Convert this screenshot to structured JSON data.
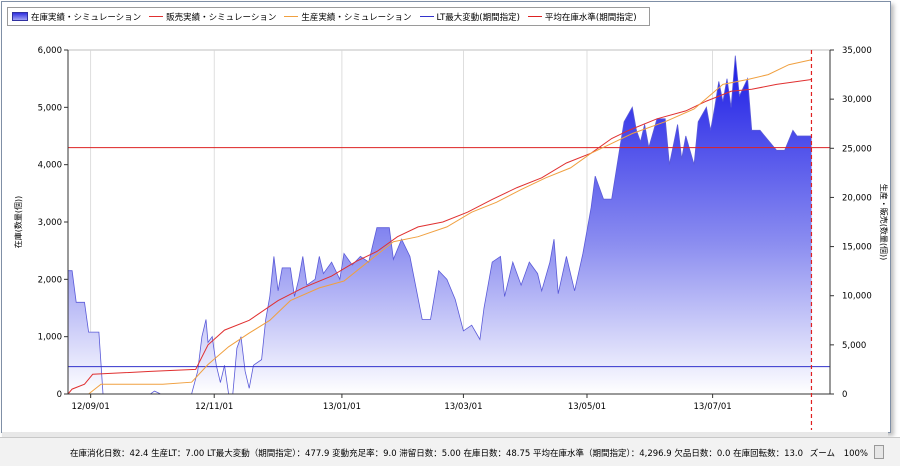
{
  "legend": {
    "items": [
      {
        "label": "在庫実績・シミュレーション",
        "kind": "area",
        "color": "#4a4de0"
      },
      {
        "label": "販売実績・シミュレーション",
        "kind": "line",
        "color": "#e03030"
      },
      {
        "label": "生産実績・シミュレーション",
        "kind": "line",
        "color": "#f0a040"
      },
      {
        "label": "LT最大変動(期間指定)",
        "kind": "line",
        "color": "#3333cc"
      },
      {
        "label": "平均在庫水準(期間指定)",
        "kind": "line",
        "color": "#dd2222"
      }
    ]
  },
  "status": {
    "text": "在庫消化日数：42.4 生産LT：7.00 LT最大変動（期間指定）：477.9 変動充足率：9.0 滞留日数：5.00 在庫日数：48.75 平均在庫水準（期間指定）：4,296.9 欠品日数：0.0 在庫回転数：13.0",
    "zoom_label": "ズーム",
    "zoom_value": "100%"
  },
  "chart_data": {
    "type": "area",
    "x_ticks": [
      "12/09/01",
      "12/11/01",
      "13/01/01",
      "13/03/01",
      "13/05/01",
      "13/07/01"
    ],
    "x_tick_pos": [
      1,
      61,
      123,
      182,
      242,
      303
    ],
    "x_range": [
      -10,
      360
    ],
    "ylabel_left": "在庫(数量(個))",
    "ylabel_right": "生産・販売(数量(個))",
    "ylim_left": [
      0,
      6000
    ],
    "ylim_right": [
      0,
      35000
    ],
    "left_ticks": [
      "0",
      "1,000",
      "2,000",
      "3,000",
      "4,000",
      "5,000",
      "6,000"
    ],
    "left_tick_vals": [
      0,
      1000,
      2000,
      3000,
      4000,
      5000,
      6000
    ],
    "right_ticks": [
      "0",
      "5,000",
      "10,000",
      "15,000",
      "20,000",
      "25,000",
      "30,000",
      "35,000"
    ],
    "right_tick_vals": [
      0,
      5000,
      10000,
      15000,
      20000,
      25000,
      30000,
      35000
    ],
    "grid": "vertical",
    "reference_lines": [
      {
        "name": "LT最大変動(期間指定)",
        "value": 477.9,
        "axis": "left",
        "color": "#3333cc"
      },
      {
        "name": "平均在庫水準(期間指定)",
        "value": 4296.9,
        "axis": "left",
        "color": "#dd2222"
      }
    ],
    "end_marker_day": 351,
    "series": [
      {
        "name": "在庫実績・シミュレーション",
        "kind": "area",
        "axis": "left",
        "color": "#3030e8",
        "points": [
          [
            -10,
            2150
          ],
          [
            -8,
            2150
          ],
          [
            -6,
            1600
          ],
          [
            -2,
            1600
          ],
          [
            0,
            1080
          ],
          [
            5,
            1080
          ],
          [
            7,
            0
          ],
          [
            30,
            0
          ],
          [
            32,
            50
          ],
          [
            35,
            0
          ],
          [
            50,
            0
          ],
          [
            53,
            400
          ],
          [
            55,
            1000
          ],
          [
            57,
            1300
          ],
          [
            58,
            900
          ],
          [
            60,
            1000
          ],
          [
            62,
            500
          ],
          [
            64,
            200
          ],
          [
            66,
            500
          ],
          [
            68,
            0
          ],
          [
            70,
            0
          ],
          [
            72,
            800
          ],
          [
            74,
            1000
          ],
          [
            76,
            400
          ],
          [
            78,
            100
          ],
          [
            80,
            500
          ],
          [
            84,
            600
          ],
          [
            86,
            1300
          ],
          [
            88,
            1700
          ],
          [
            90,
            2400
          ],
          [
            92,
            1800
          ],
          [
            94,
            2200
          ],
          [
            98,
            2200
          ],
          [
            100,
            1700
          ],
          [
            102,
            2000
          ],
          [
            104,
            2400
          ],
          [
            106,
            1900
          ],
          [
            110,
            2000
          ],
          [
            112,
            2400
          ],
          [
            114,
            2100
          ],
          [
            118,
            2300
          ],
          [
            122,
            2000
          ],
          [
            124,
            2450
          ],
          [
            128,
            2250
          ],
          [
            132,
            2400
          ],
          [
            136,
            2300
          ],
          [
            140,
            2900
          ],
          [
            146,
            2900
          ],
          [
            148,
            2350
          ],
          [
            152,
            2700
          ],
          [
            156,
            2400
          ],
          [
            162,
            1300
          ],
          [
            166,
            1300
          ],
          [
            170,
            2150
          ],
          [
            174,
            2000
          ],
          [
            178,
            1650
          ],
          [
            182,
            1100
          ],
          [
            186,
            1200
          ],
          [
            190,
            950
          ],
          [
            192,
            1500
          ],
          [
            196,
            2300
          ],
          [
            200,
            2400
          ],
          [
            202,
            1700
          ],
          [
            206,
            2300
          ],
          [
            210,
            1900
          ],
          [
            214,
            2300
          ],
          [
            218,
            2100
          ],
          [
            220,
            1800
          ],
          [
            224,
            2300
          ],
          [
            226,
            2700
          ],
          [
            228,
            1750
          ],
          [
            232,
            2400
          ],
          [
            236,
            1800
          ],
          [
            240,
            2450
          ],
          [
            244,
            3250
          ],
          [
            246,
            3800
          ],
          [
            250,
            3400
          ],
          [
            254,
            3400
          ],
          [
            256,
            3850
          ],
          [
            258,
            4300
          ],
          [
            260,
            4750
          ],
          [
            264,
            5000
          ],
          [
            266,
            4600
          ],
          [
            268,
            4400
          ],
          [
            270,
            4700
          ],
          [
            272,
            4300
          ],
          [
            276,
            4800
          ],
          [
            280,
            4800
          ],
          [
            282,
            4000
          ],
          [
            286,
            4700
          ],
          [
            288,
            4100
          ],
          [
            290,
            4500
          ],
          [
            294,
            4000
          ],
          [
            296,
            4750
          ],
          [
            300,
            5000
          ],
          [
            302,
            4600
          ],
          [
            304,
            5000
          ],
          [
            306,
            5450
          ],
          [
            308,
            5100
          ],
          [
            310,
            5500
          ],
          [
            312,
            5000
          ],
          [
            314,
            5900
          ],
          [
            316,
            5200
          ],
          [
            320,
            5500
          ],
          [
            322,
            4600
          ],
          [
            326,
            4600
          ],
          [
            334,
            4250
          ],
          [
            338,
            4250
          ],
          [
            342,
            4600
          ],
          [
            344,
            4500
          ],
          [
            351,
            4500
          ]
        ]
      },
      {
        "name": "販売実績・シミュレーション",
        "kind": "line",
        "axis": "right",
        "color": "#e03030",
        "points": [
          [
            -10,
            0
          ],
          [
            -8,
            500
          ],
          [
            -2,
            1000
          ],
          [
            2,
            2000
          ],
          [
            30,
            2300
          ],
          [
            52,
            2500
          ],
          [
            58,
            5000
          ],
          [
            66,
            6500
          ],
          [
            78,
            7500
          ],
          [
            92,
            9500
          ],
          [
            104,
            10800
          ],
          [
            118,
            12000
          ],
          [
            130,
            13500
          ],
          [
            140,
            14500
          ],
          [
            150,
            16000
          ],
          [
            160,
            17000
          ],
          [
            172,
            17500
          ],
          [
            184,
            18500
          ],
          [
            196,
            19800
          ],
          [
            208,
            21000
          ],
          [
            220,
            22000
          ],
          [
            232,
            23500
          ],
          [
            244,
            24500
          ],
          [
            254,
            26000
          ],
          [
            262,
            26800
          ],
          [
            276,
            28000
          ],
          [
            290,
            28800
          ],
          [
            300,
            29800
          ],
          [
            312,
            30800
          ],
          [
            322,
            31000
          ],
          [
            334,
            31500
          ],
          [
            351,
            32000
          ]
        ]
      },
      {
        "name": "生産実績・シミュレーション",
        "kind": "line",
        "axis": "right",
        "color": "#f0a040",
        "points": [
          [
            -10,
            0
          ],
          [
            0,
            0
          ],
          [
            6,
            1000
          ],
          [
            36,
            1000
          ],
          [
            50,
            1200
          ],
          [
            58,
            3000
          ],
          [
            68,
            4800
          ],
          [
            78,
            6200
          ],
          [
            88,
            7500
          ],
          [
            98,
            9500
          ],
          [
            112,
            10800
          ],
          [
            124,
            11500
          ],
          [
            136,
            13500
          ],
          [
            148,
            15500
          ],
          [
            160,
            16000
          ],
          [
            174,
            17000
          ],
          [
            186,
            18500
          ],
          [
            198,
            19500
          ],
          [
            210,
            20800
          ],
          [
            222,
            22000
          ],
          [
            234,
            23000
          ],
          [
            244,
            24500
          ],
          [
            254,
            25500
          ],
          [
            264,
            26500
          ],
          [
            280,
            27700
          ],
          [
            294,
            29000
          ],
          [
            308,
            31500
          ],
          [
            320,
            32000
          ],
          [
            330,
            32500
          ],
          [
            340,
            33500
          ],
          [
            351,
            34000
          ]
        ]
      }
    ]
  }
}
